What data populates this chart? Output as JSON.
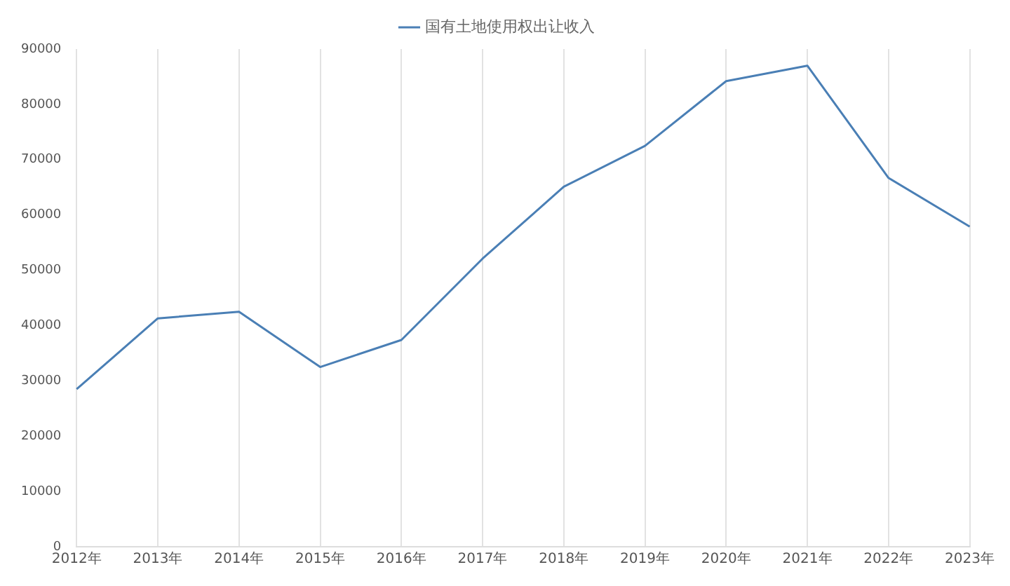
{
  "chart_data": {
    "type": "line",
    "categories": [
      "2012年",
      "2013年",
      "2014年",
      "2015年",
      "2016年",
      "2017年",
      "2018年",
      "2019年",
      "2020年",
      "2021年",
      "2022年",
      "2023年"
    ],
    "series": [
      {
        "name": "国有土地使用权出让收入",
        "color": "#4a7fb5",
        "values": [
          28500,
          41300,
          42500,
          32500,
          37400,
          52100,
          65100,
          72500,
          84200,
          87000,
          66700,
          57900
        ]
      }
    ],
    "ylim": [
      0,
      90000
    ],
    "yticks": [
      0,
      10000,
      20000,
      30000,
      40000,
      50000,
      60000,
      70000,
      80000,
      90000
    ],
    "grid": "x",
    "legend": "top",
    "marker": "none",
    "line_style": "solid"
  }
}
